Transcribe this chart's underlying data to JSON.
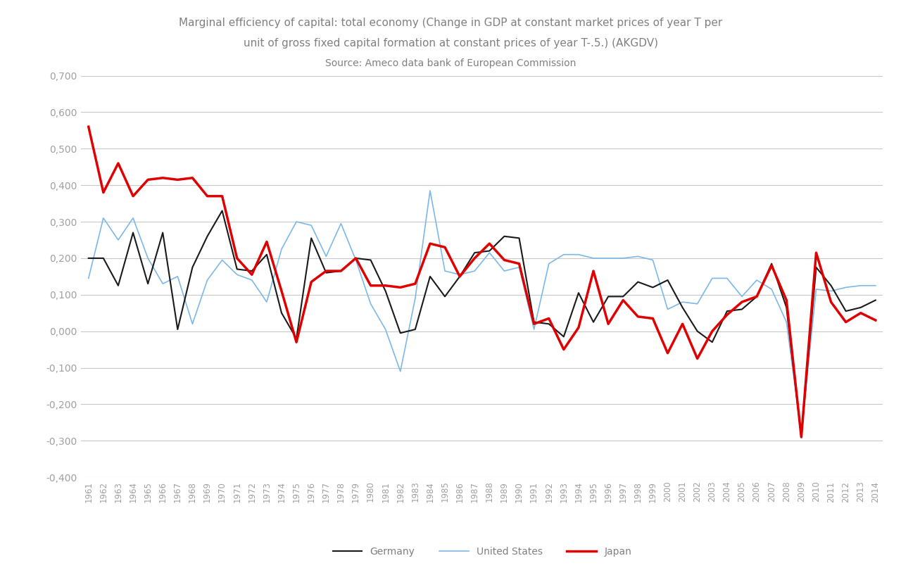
{
  "title_line1": "Marginal efficiency of capital: total economy (Change in GDP at constant market prices of year T per",
  "title_line2": "unit of gross fixed capital formation at constant prices of year T-.5.) (AKGDV)",
  "subtitle": "Source: Ameco data bank of European Commission",
  "years": [
    1961,
    1962,
    1963,
    1964,
    1965,
    1966,
    1967,
    1968,
    1969,
    1970,
    1971,
    1972,
    1973,
    1974,
    1975,
    1976,
    1977,
    1978,
    1979,
    1980,
    1981,
    1982,
    1983,
    1984,
    1985,
    1986,
    1987,
    1988,
    1989,
    1990,
    1991,
    1992,
    1993,
    1994,
    1995,
    1996,
    1997,
    1998,
    1999,
    2000,
    2001,
    2002,
    2003,
    2004,
    2005,
    2006,
    2007,
    2008,
    2009,
    2010,
    2011,
    2012,
    2013,
    2014
  ],
  "germany": [
    0.2,
    0.2,
    0.125,
    0.27,
    0.13,
    0.27,
    0.005,
    0.175,
    0.26,
    0.33,
    0.17,
    0.165,
    0.21,
    0.05,
    -0.02,
    0.255,
    0.16,
    0.165,
    0.2,
    0.195,
    0.11,
    -0.005,
    0.005,
    0.15,
    0.095,
    0.15,
    0.215,
    0.22,
    0.26,
    0.255,
    0.025,
    0.02,
    -0.015,
    0.105,
    0.025,
    0.095,
    0.095,
    0.135,
    0.12,
    0.14,
    0.065,
    0.0,
    -0.03,
    0.055,
    0.06,
    0.095,
    0.185,
    0.065,
    -0.29,
    0.175,
    0.125,
    0.055,
    0.065,
    0.085
  ],
  "us": [
    0.145,
    0.31,
    0.25,
    0.31,
    0.2,
    0.13,
    0.15,
    0.02,
    0.14,
    0.195,
    0.155,
    0.14,
    0.08,
    0.225,
    0.3,
    0.29,
    0.205,
    0.295,
    0.195,
    0.075,
    0.005,
    -0.11,
    0.09,
    0.385,
    0.165,
    0.155,
    0.165,
    0.215,
    0.165,
    0.175,
    0.005,
    0.185,
    0.21,
    0.21,
    0.2,
    0.2,
    0.2,
    0.205,
    0.195,
    0.06,
    0.08,
    0.075,
    0.145,
    0.145,
    0.095,
    0.14,
    0.115,
    0.025,
    -0.28,
    0.115,
    0.11,
    0.12,
    0.125,
    0.125
  ],
  "japan": [
    0.56,
    0.38,
    0.46,
    0.37,
    0.415,
    0.42,
    0.415,
    0.42,
    0.37,
    0.37,
    0.2,
    0.155,
    0.245,
    0.11,
    -0.03,
    0.135,
    0.165,
    0.165,
    0.2,
    0.125,
    0.125,
    0.12,
    0.13,
    0.24,
    0.23,
    0.15,
    0.2,
    0.24,
    0.195,
    0.185,
    0.02,
    0.035,
    -0.05,
    0.01,
    0.165,
    0.02,
    0.085,
    0.04,
    0.035,
    -0.06,
    0.02,
    -0.075,
    0.0,
    0.045,
    0.08,
    0.095,
    0.18,
    0.085,
    -0.29,
    0.215,
    0.08,
    0.025,
    0.05,
    0.03
  ],
  "germany_color": "#1a1a1a",
  "us_color": "#7db8e8",
  "japan_color": "#e00000",
  "germany_lw": 1.5,
  "us_lw": 1.2,
  "japan_lw": 2.5,
  "ylim_min": -0.4,
  "ylim_max": 0.7,
  "yticks": [
    -0.4,
    -0.3,
    -0.2,
    -0.1,
    0.0,
    0.1,
    0.2,
    0.3,
    0.4,
    0.5,
    0.6,
    0.7
  ],
  "background_color": "#ffffff",
  "grid_color": "#c8c8c8",
  "title_color": "#808080",
  "axis_label_color": "#a0a0a0",
  "legend_labels": [
    "Germany",
    "United States",
    "Japan"
  ]
}
